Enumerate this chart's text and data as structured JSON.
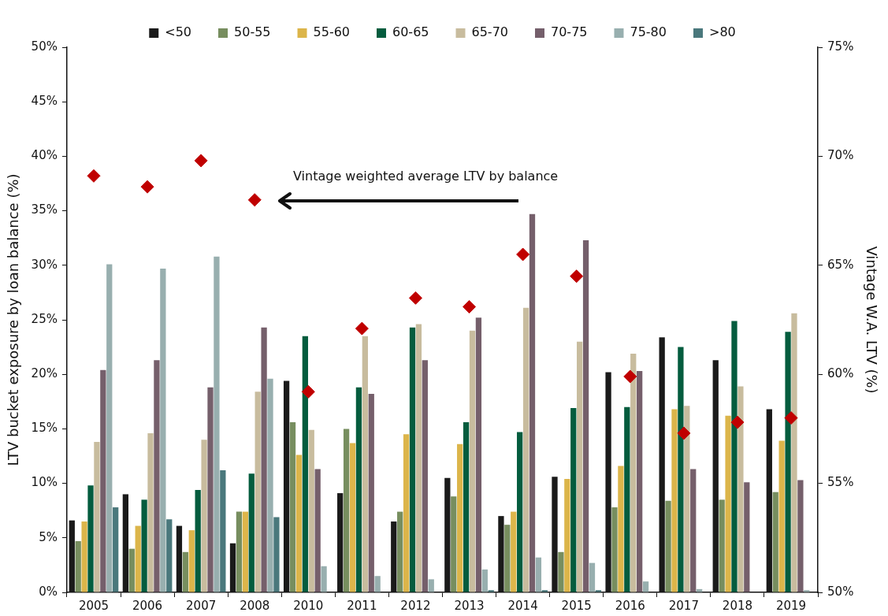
{
  "chart_data": {
    "type": "bar",
    "ylabel": "LTV bucket exposure by loan balance (%)",
    "y2label": "Vintage W.A. LTV (%)",
    "categories": [
      "2005",
      "2006",
      "2007",
      "2008",
      "2010",
      "2011",
      "2012",
      "2013",
      "2014",
      "2015",
      "2016",
      "2017",
      "2018",
      "2019"
    ],
    "series": [
      {
        "name": "<50",
        "color": "#1a1a1a",
        "values": [
          6.6,
          9.0,
          6.1,
          4.5,
          19.4,
          9.1,
          6.5,
          10.5,
          7.0,
          10.6,
          20.2,
          23.4,
          21.3,
          16.8
        ]
      },
      {
        "name": "50-55",
        "color": "#778e5f",
        "values": [
          4.7,
          4.0,
          3.7,
          7.4,
          15.6,
          15.0,
          7.4,
          8.8,
          6.2,
          3.7,
          7.8,
          8.4,
          8.5,
          9.2
        ]
      },
      {
        "name": "55-60",
        "color": "#dcb54a",
        "values": [
          6.5,
          6.1,
          5.7,
          7.4,
          12.6,
          13.7,
          14.5,
          13.6,
          7.4,
          10.4,
          11.6,
          16.8,
          16.2,
          13.9
        ]
      },
      {
        "name": "60-65",
        "color": "#045c3e",
        "values": [
          9.8,
          8.5,
          9.4,
          10.9,
          23.5,
          18.8,
          24.3,
          15.6,
          14.7,
          16.9,
          17.0,
          22.5,
          24.9,
          23.9
        ]
      },
      {
        "name": "65-70",
        "color": "#c8bc9e",
        "values": [
          13.8,
          14.6,
          14.0,
          18.4,
          14.9,
          23.5,
          24.6,
          24.0,
          26.1,
          23.0,
          21.9,
          17.1,
          18.9,
          25.6
        ]
      },
      {
        "name": "70-75",
        "color": "#755f6b",
        "values": [
          20.4,
          21.3,
          18.8,
          24.3,
          11.3,
          18.2,
          21.3,
          25.2,
          34.7,
          32.3,
          20.3,
          11.3,
          10.1,
          10.3
        ]
      },
      {
        "name": "75-80",
        "color": "#98afaf",
        "values": [
          30.1,
          29.7,
          30.8,
          19.6,
          2.4,
          1.5,
          1.2,
          2.1,
          3.2,
          2.7,
          1.0,
          0.3,
          0,
          0.2
        ]
      },
      {
        "name": ">80",
        "color": "#4a787c",
        "values": [
          7.8,
          6.7,
          11.2,
          6.9,
          0,
          0,
          0,
          0.2,
          0.2,
          0.2,
          0,
          0,
          0,
          0
        ]
      },
      {
        "type": "scatter",
        "axis": "y2",
        "color": "#c00000",
        "values": [
          69.1,
          68.6,
          69.8,
          68.0,
          59.2,
          62.1,
          63.5,
          63.1,
          65.5,
          64.5,
          59.9,
          57.3,
          57.8,
          58.0
        ]
      }
    ],
    "ylim": [
      0,
      50
    ],
    "yticks": [
      {
        "value": 0,
        "label": "0%"
      },
      {
        "value": 5,
        "label": "5%"
      },
      {
        "value": 10,
        "label": "10%"
      },
      {
        "value": 15,
        "label": "15%"
      },
      {
        "value": 20,
        "label": "20%"
      },
      {
        "value": 25,
        "label": "25%"
      },
      {
        "value": 30,
        "label": "30%"
      },
      {
        "value": 35,
        "label": "35%"
      },
      {
        "value": 40,
        "label": "40%"
      },
      {
        "value": 45,
        "label": "45%"
      },
      {
        "value": 50,
        "label": "50%"
      }
    ],
    "y2lim": [
      50,
      75
    ],
    "y2ticks": [
      {
        "value": 50,
        "label": "50%"
      },
      {
        "value": 55,
        "label": "55%"
      },
      {
        "value": 60,
        "label": "60%"
      },
      {
        "value": 65,
        "label": "65%"
      },
      {
        "value": 70,
        "label": "70%"
      },
      {
        "value": 75,
        "label": "75%"
      }
    ],
    "annotations": [
      "Vintage weighted average LTV by balance"
    ],
    "marker": "diamond",
    "legend": "top",
    "grid": false
  }
}
